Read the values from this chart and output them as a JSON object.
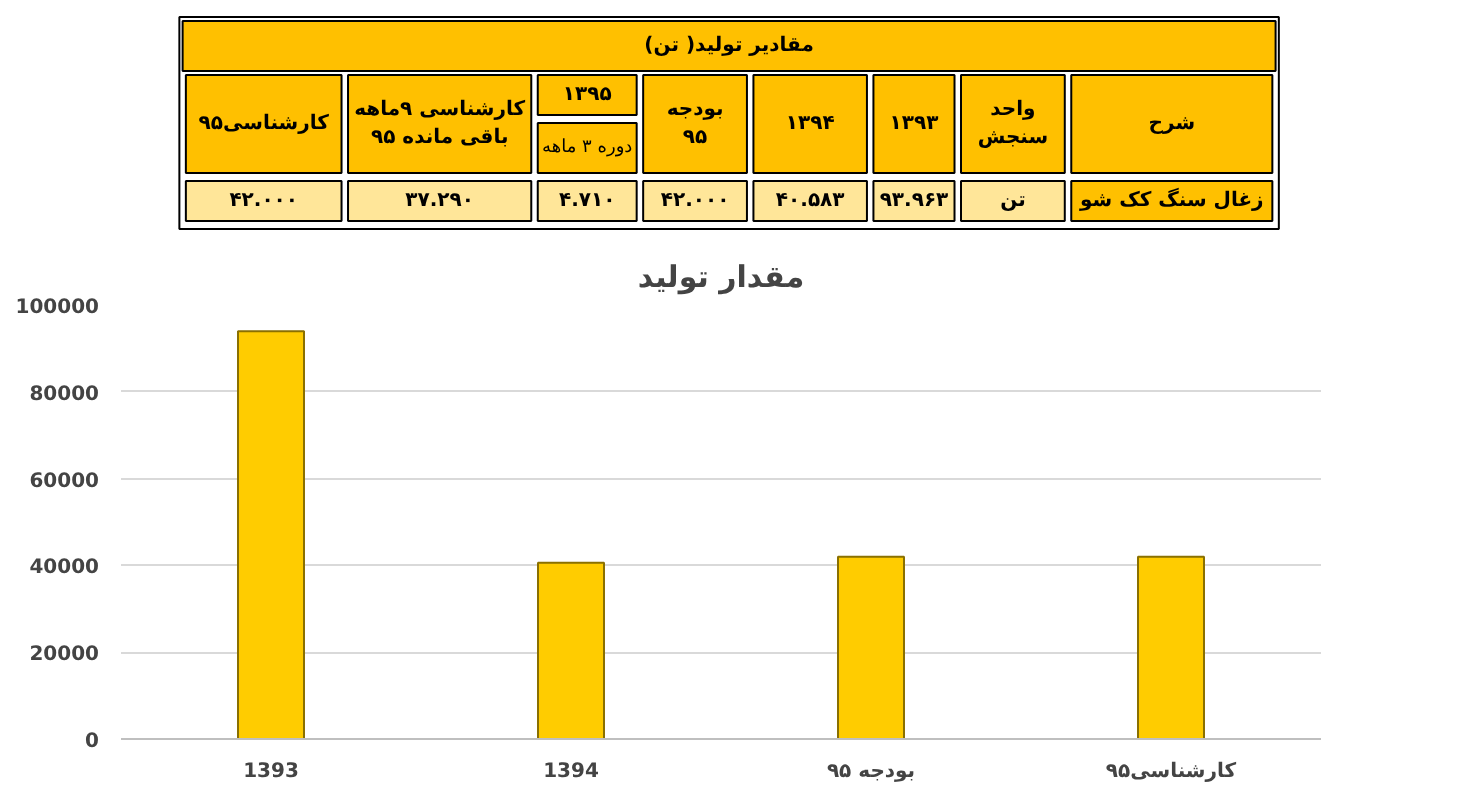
{
  "chart_data": [
    {
      "type": "other",
      "title": "مقادیر تولید( تن)",
      "annotations": [
        "شرح",
        "واحد\nسنجش",
        "۱۳۹۳",
        "۱۳۹۴",
        "بودجه\n۹۵",
        "۱۳۹۵",
        "دوره ۳ ماهه",
        "کارشناسی ۹ماهه\nباقی مانده ۹۵",
        "کارشناسی۹۵",
        "زغال سنگ کک شو",
        "تن",
        "۹۳.۹۶۳",
        "۴۰.۵۸۳",
        "۴۲.۰۰۰",
        "۴.۷۱۰",
        "۳۷.۲۹۰",
        "۴۲.۰۰۰"
      ]
    },
    {
      "type": "bar",
      "title": "مقدار تولید",
      "categories": [
        "1393",
        "1394",
        "بودجه ۹۵",
        "کارشناسی۹۵"
      ],
      "values": [
        93963,
        40583,
        42000,
        42000
      ],
      "color": "#ffcc00",
      "ylim": [
        0,
        100000
      ],
      "yticks": [
        0,
        20000,
        40000,
        60000,
        80000,
        100000
      ],
      "grid": "y"
    }
  ]
}
